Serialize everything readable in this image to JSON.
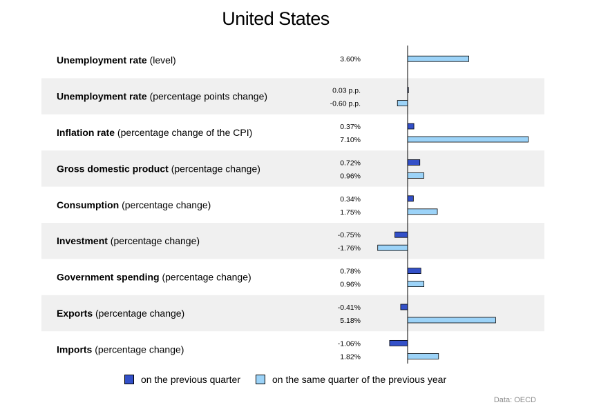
{
  "title": "United States",
  "source": "Data: OECD",
  "colors": {
    "quarter": "#3350c8",
    "year": "#9cd3f8",
    "band": "#f0f0f0",
    "border": "#000000"
  },
  "legend": {
    "quarter": "on the previous quarter",
    "year": "on the same quarter of the previous year"
  },
  "chart_data": {
    "type": "bar",
    "orientation": "horizontal",
    "title": "United States",
    "categories": [
      {
        "bold": "Unemployment rate",
        "rest": " (level)"
      },
      {
        "bold": "Unemployment rate",
        "rest": " (percentage points change)"
      },
      {
        "bold": "Inflation rate",
        "rest": " (percentage change of the CPI)"
      },
      {
        "bold": "Gross domestic product",
        "rest": " (percentage change)"
      },
      {
        "bold": "Consumption",
        "rest": " (percentage change)"
      },
      {
        "bold": "Investment",
        "rest": " (percentage change)"
      },
      {
        "bold": "Government spending",
        "rest": " (percentage change)"
      },
      {
        "bold": "Exports",
        "rest": " (percentage change)"
      },
      {
        "bold": "Imports",
        "rest": " (percentage change)"
      }
    ],
    "series": [
      {
        "name": "on the previous quarter",
        "values": [
          null,
          0.03,
          0.37,
          0.72,
          0.34,
          -0.75,
          0.78,
          -0.41,
          -1.06
        ],
        "labels": [
          "",
          "0.03 p.p.",
          "0.37%",
          "0.72%",
          "0.34%",
          "-0.75%",
          "0.78%",
          "-0.41%",
          "-1.06%"
        ]
      },
      {
        "name": "on the same quarter of the previous year",
        "values": [
          3.6,
          -0.6,
          7.1,
          0.96,
          1.75,
          -1.76,
          0.96,
          5.18,
          1.82
        ],
        "labels": [
          "3.60%",
          "-0.60 p.p.",
          "7.10%",
          "0.96%",
          "1.75%",
          "-1.76%",
          "0.96%",
          "5.18%",
          "1.82%"
        ]
      }
    ],
    "grid": false,
    "legend_position": "bottom"
  }
}
